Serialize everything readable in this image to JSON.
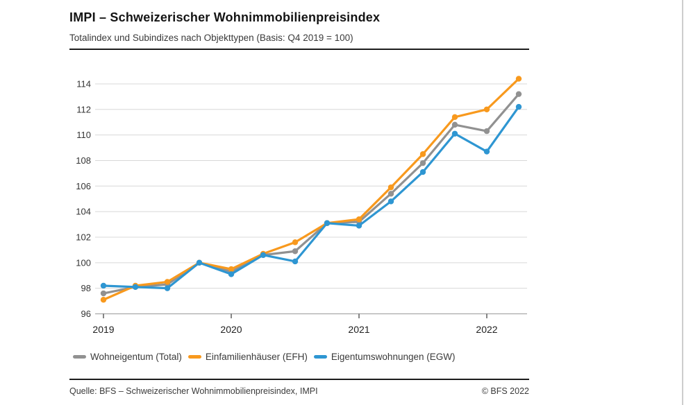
{
  "header": {
    "title": "IMPI – Schweizerischer Wohnimmobilienpreisindex",
    "subtitle": "Totalindex und Subindizes nach Objekttypen (Basis: Q4 2019 = 100)"
  },
  "footer": {
    "source": "Quelle: BFS – Schweizerischer Wohnimmobilienpreisindex, IMPI",
    "copyright": "© BFS 2022"
  },
  "colors": {
    "total": "#919191",
    "efh": "#F8991D",
    "egw": "#2E96D2",
    "grid": "#D8D8D8",
    "axis": "#A9A9A9",
    "text": "#333333",
    "tick": "#444444"
  },
  "chart_data": {
    "type": "line",
    "title": "IMPI – Schweizerischer Wohnimmobilienpreisindex",
    "subtitle": "Totalindex und Subindizes nach Objekttypen (Basis: Q4 2019 = 100)",
    "categories": [
      "Q1 2019",
      "Q2 2019",
      "Q3 2019",
      "Q4 2019",
      "Q1 2020",
      "Q2 2020",
      "Q3 2020",
      "Q4 2020",
      "Q1 2021",
      "Q2 2021",
      "Q3 2021",
      "Q4 2021",
      "Q1 2022",
      "Q2 2022"
    ],
    "x_tick_labels": [
      "2019",
      "2020",
      "2021",
      "2022"
    ],
    "x_tick_positions": [
      0,
      4,
      8,
      12
    ],
    "y_ticks": [
      96,
      98,
      100,
      102,
      104,
      106,
      108,
      110,
      112,
      114
    ],
    "ylim": [
      96,
      114
    ],
    "grid": true,
    "legend_position": "bottom",
    "series": [
      {
        "name": "Wohneigentum (Total)",
        "color_key": "total",
        "values": [
          97.6,
          98.1,
          98.3,
          100.0,
          99.3,
          100.6,
          100.9,
          103.1,
          103.2,
          105.4,
          107.8,
          110.8,
          110.3,
          113.2
        ]
      },
      {
        "name": "Einfamilienhäuser (EFH)",
        "color_key": "efh",
        "values": [
          97.1,
          98.2,
          98.5,
          100.0,
          99.5,
          100.7,
          101.6,
          103.1,
          103.4,
          105.9,
          108.5,
          111.4,
          112.0,
          114.4
        ]
      },
      {
        "name": "Eigentumswohnungen (EGW)",
        "color_key": "egw",
        "values": [
          98.2,
          98.1,
          98.0,
          100.0,
          99.1,
          100.6,
          100.1,
          103.1,
          102.9,
          104.8,
          107.1,
          110.1,
          108.7,
          112.2
        ]
      }
    ]
  }
}
